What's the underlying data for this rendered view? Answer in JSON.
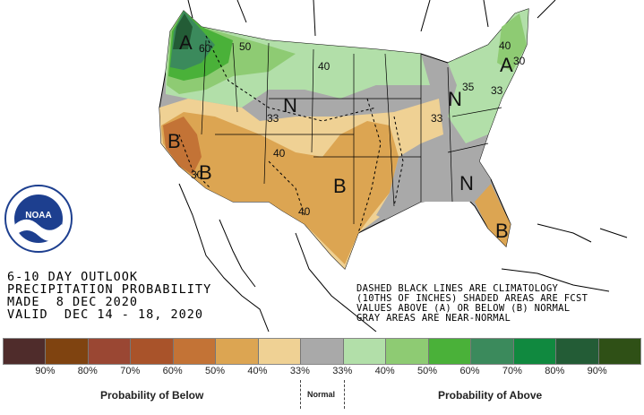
{
  "map": {
    "letters": [
      "A",
      "B",
      "N",
      "B",
      "N",
      "N",
      "A",
      "B",
      "B"
    ],
    "contours": [
      "60",
      "50",
      "40",
      "33",
      "40",
      "30",
      "40",
      "33",
      "40",
      "35",
      "30",
      "33"
    ]
  },
  "title_block": {
    "line1": "6-10 DAY OUTLOOK",
    "line2": "PRECIPITATION PROBABILITY",
    "line3": "MADE  8 DEC 2020",
    "line4": "VALID  DEC 14 - 18, 2020"
  },
  "legend_note": {
    "line1": "DASHED BLACK LINES ARE CLIMATOLOGY",
    "line2": "(10THS OF INCHES) SHADED AREAS ARE FCST",
    "line3": "VALUES ABOVE (A) OR BELOW (B) NORMAL",
    "line4": "GRAY AREAS ARE NEAR-NORMAL"
  },
  "legend": {
    "colors": [
      "#4f2c2b",
      "#7f4310",
      "#9a4733",
      "#a9532a",
      "#c37336",
      "#dca552",
      "#efd194",
      "#a9a9a9",
      "#b2dfa9",
      "#8ecb73",
      "#4ab139",
      "#3b8a5c",
      "#10893f",
      "#235c36",
      "#2f5016"
    ],
    "ticks": [
      "90%",
      "80%",
      "70%",
      "60%",
      "50%",
      "40%",
      "33%",
      "33%",
      "40%",
      "50%",
      "60%",
      "70%",
      "80%",
      "90%"
    ],
    "below_label": "Probability of Below",
    "normal_label": "Normal",
    "above_label": "Probability of Above"
  },
  "logo": {
    "text": "NOAA"
  }
}
